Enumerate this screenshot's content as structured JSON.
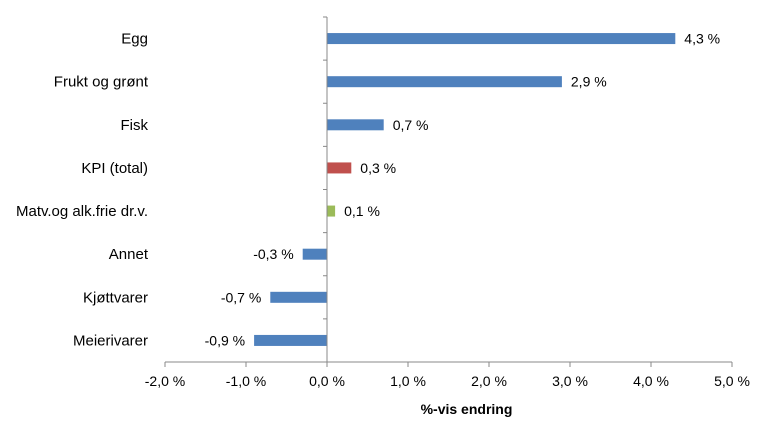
{
  "chart_data": {
    "type": "bar",
    "orientation": "horizontal",
    "categories": [
      "Egg",
      "Frukt og grønt",
      "Fisk",
      "KPI (total)",
      "Matv.og alk.frie dr.v.",
      "Annet",
      "Kjøttvarer",
      "Meierivarer"
    ],
    "values": [
      4.3,
      2.9,
      0.7,
      0.3,
      0.1,
      -0.3,
      -0.7,
      -0.9
    ],
    "data_labels": [
      "4,3 %",
      "2,9 %",
      "0,7 %",
      "0,3 %",
      "0,1 %",
      "-0,3 %",
      "-0,7 %",
      "-0,9 %"
    ],
    "bar_colors": [
      "#4f81bd",
      "#4f81bd",
      "#4f81bd",
      "#c0504d",
      "#9bbb59",
      "#4f81bd",
      "#4f81bd",
      "#4f81bd"
    ],
    "xlim": [
      -2.0,
      5.0
    ],
    "x_ticks": [
      -2.0,
      -1.0,
      0.0,
      1.0,
      2.0,
      3.0,
      4.0,
      5.0
    ],
    "x_tick_labels": [
      "-2,0 %",
      "-1,0 %",
      "0,0 %",
      "1,0 %",
      "2,0 %",
      "3,0 %",
      "4,0 %",
      "5,0 %"
    ],
    "xlabel": "%-vis endring",
    "ylabel": "",
    "title": "",
    "grid": false,
    "legend": "none"
  }
}
